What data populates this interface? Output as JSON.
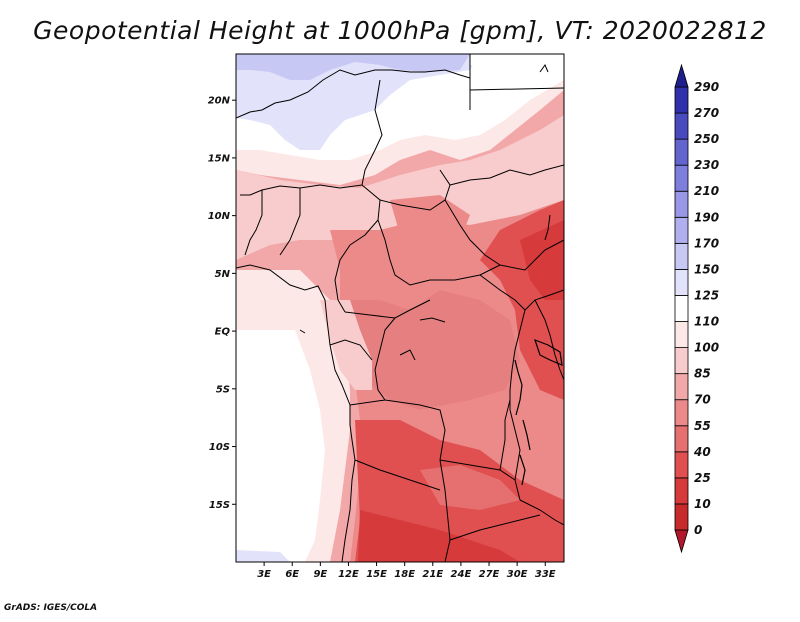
{
  "title": "Geopotential Height at 1000hPa [gpm], VT: 2020022812",
  "credit": "GrADS: IGES/COLA",
  "map": {
    "variable": "Geopotential Height",
    "level": "1000hPa",
    "units": "gpm",
    "valid_time": "2020022812",
    "lon_range": [
      0,
      35
    ],
    "lat_range": [
      -20,
      24
    ],
    "lat_ticks": [
      {
        "value": 20,
        "label": "20N"
      },
      {
        "value": 15,
        "label": "15N"
      },
      {
        "value": 10,
        "label": "10N"
      },
      {
        "value": 5,
        "label": "5N"
      },
      {
        "value": 0,
        "label": "EQ"
      },
      {
        "value": -5,
        "label": "5S"
      },
      {
        "value": -10,
        "label": "10S"
      },
      {
        "value": -15,
        "label": "15S"
      }
    ],
    "lon_ticks": [
      {
        "value": 3,
        "label": "3E"
      },
      {
        "value": 6,
        "label": "6E"
      },
      {
        "value": 9,
        "label": "9E"
      },
      {
        "value": 12,
        "label": "12E"
      },
      {
        "value": 15,
        "label": "15E"
      },
      {
        "value": 18,
        "label": "18E"
      },
      {
        "value": 21,
        "label": "21E"
      },
      {
        "value": 24,
        "label": "24E"
      },
      {
        "value": 27,
        "label": "27E"
      },
      {
        "value": 30,
        "label": "30E"
      },
      {
        "value": 33,
        "label": "33E"
      }
    ]
  },
  "legend": {
    "levels": [
      "0",
      "10",
      "25",
      "40",
      "55",
      "70",
      "85",
      "100",
      "110",
      "125",
      "150",
      "170",
      "190",
      "210",
      "230",
      "250",
      "270",
      "290"
    ],
    "colors": [
      "#b2182b",
      "#c62a2a",
      "#d63a3a",
      "#e05050",
      "#e67070",
      "#ec8a8a",
      "#f2a8a8",
      "#f8cccc",
      "#fde8e8",
      "#ffffff",
      "#e2e2fa",
      "#c8c8f4",
      "#b0b0ee",
      "#9898e6",
      "#7e7edc",
      "#6464cf",
      "#4a4abf",
      "#3030ac",
      "#1e1e8c"
    ]
  }
}
